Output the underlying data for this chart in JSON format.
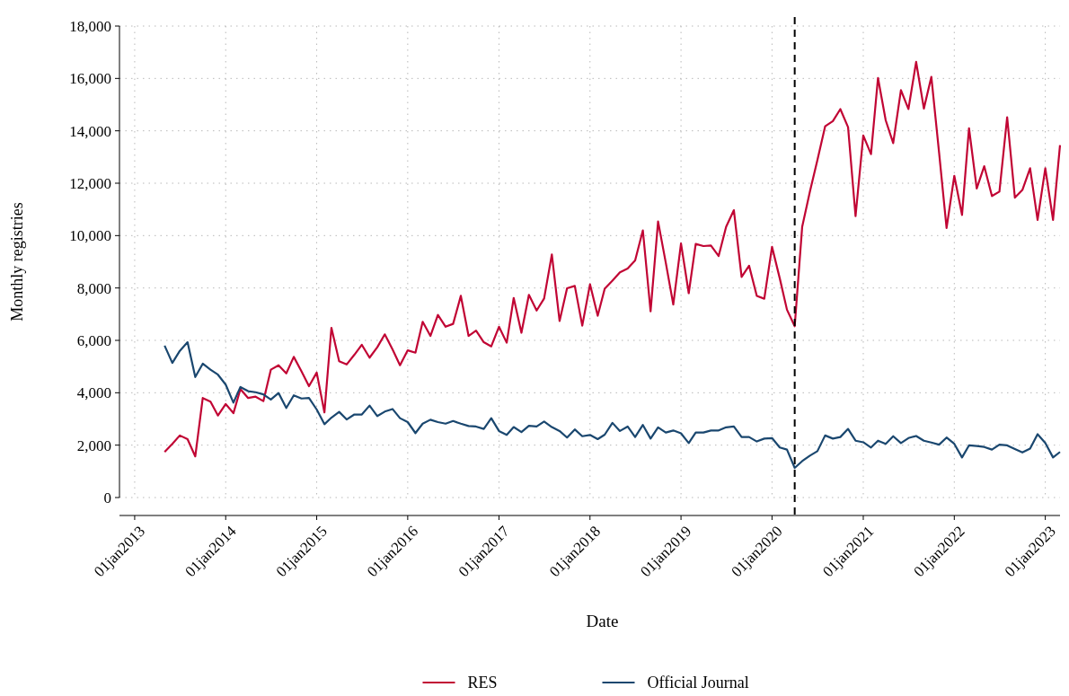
{
  "chart_data": {
    "type": "line",
    "xlabel": "Date",
    "ylabel": "Monthly registries",
    "x": [
      "2013-05",
      "2013-06",
      "2013-07",
      "2013-08",
      "2013-09",
      "2013-10",
      "2013-11",
      "2013-12",
      "2014-01",
      "2014-02",
      "2014-03",
      "2014-04",
      "2014-05",
      "2014-06",
      "2014-07",
      "2014-08",
      "2014-09",
      "2014-10",
      "2014-11",
      "2014-12",
      "2015-01",
      "2015-02",
      "2015-03",
      "2015-04",
      "2015-05",
      "2015-06",
      "2015-07",
      "2015-08",
      "2015-09",
      "2015-10",
      "2015-11",
      "2015-12",
      "2016-01",
      "2016-02",
      "2016-03",
      "2016-04",
      "2016-05",
      "2016-06",
      "2016-07",
      "2016-08",
      "2016-09",
      "2016-10",
      "2016-11",
      "2016-12",
      "2017-01",
      "2017-02",
      "2017-03",
      "2017-04",
      "2017-05",
      "2017-06",
      "2017-07",
      "2017-08",
      "2017-09",
      "2017-10",
      "2017-11",
      "2017-12",
      "2018-01",
      "2018-02",
      "2018-03",
      "2018-04",
      "2018-05",
      "2018-06",
      "2018-07",
      "2018-08",
      "2018-09",
      "2018-10",
      "2018-11",
      "2018-12",
      "2019-01",
      "2019-02",
      "2019-03",
      "2019-04",
      "2019-05",
      "2019-06",
      "2019-07",
      "2019-08",
      "2019-09",
      "2019-10",
      "2019-11",
      "2019-12",
      "2020-01",
      "2020-02",
      "2020-03",
      "2020-04",
      "2020-05",
      "2020-06",
      "2020-07",
      "2020-08",
      "2020-09",
      "2020-10",
      "2020-11",
      "2020-12",
      "2021-01",
      "2021-02",
      "2021-03",
      "2021-04",
      "2021-05",
      "2021-06",
      "2021-07",
      "2021-08",
      "2021-09",
      "2021-10",
      "2021-11",
      "2021-12",
      "2022-01",
      "2022-02",
      "2022-03",
      "2022-04",
      "2022-05",
      "2022-06",
      "2022-07",
      "2022-08",
      "2022-09",
      "2022-10",
      "2022-11",
      "2022-12",
      "2023-01",
      "2023-02",
      "2023-03"
    ],
    "series": [
      {
        "name": "RES",
        "color": "#c10534",
        "values": [
          1740,
          2050,
          2370,
          2230,
          1570,
          3800,
          3660,
          3130,
          3570,
          3220,
          4140,
          3800,
          3850,
          3680,
          4880,
          5050,
          4740,
          5370,
          4820,
          4250,
          4770,
          3250,
          6480,
          5200,
          5080,
          5450,
          5830,
          5340,
          5740,
          6230,
          5660,
          5050,
          5620,
          5530,
          6710,
          6170,
          6970,
          6520,
          6630,
          7700,
          6170,
          6370,
          5930,
          5770,
          6520,
          5910,
          7620,
          6290,
          7740,
          7140,
          7600,
          9280,
          6740,
          7990,
          8080,
          6560,
          8140,
          6940,
          7970,
          8280,
          8600,
          8740,
          9050,
          10200,
          7110,
          10540,
          8960,
          7370,
          9700,
          7800,
          9680,
          9600,
          9620,
          9220,
          10340,
          10970,
          8420,
          8850,
          7700,
          7590,
          9570,
          8370,
          7170,
          6540,
          10340,
          11680,
          12880,
          14170,
          14370,
          14830,
          14140,
          10740,
          13820,
          13110,
          16020,
          14400,
          13530,
          15550,
          14830,
          16630,
          14850,
          16060,
          13170,
          10290,
          12280,
          10790,
          14100,
          11800,
          12650,
          11510,
          11680,
          14520,
          11450,
          11740,
          12570,
          10600,
          12570,
          10600,
          13450
        ]
      },
      {
        "name": "Official Journal",
        "color": "#1a476f",
        "values": [
          5800,
          5140,
          5600,
          5930,
          4600,
          5110,
          4880,
          4690,
          4310,
          3620,
          4220,
          4060,
          4020,
          3940,
          3740,
          3990,
          3420,
          3900,
          3780,
          3800,
          3360,
          2800,
          3050,
          3270,
          2980,
          3170,
          3170,
          3510,
          3110,
          3280,
          3380,
          3030,
          2880,
          2460,
          2820,
          2970,
          2880,
          2820,
          2920,
          2820,
          2730,
          2710,
          2620,
          3030,
          2540,
          2390,
          2690,
          2500,
          2740,
          2710,
          2900,
          2690,
          2540,
          2290,
          2600,
          2340,
          2390,
          2230,
          2400,
          2850,
          2540,
          2710,
          2310,
          2770,
          2250,
          2680,
          2480,
          2560,
          2450,
          2080,
          2480,
          2480,
          2560,
          2560,
          2680,
          2710,
          2310,
          2310,
          2140,
          2250,
          2270,
          1910,
          1830,
          1130,
          1390,
          1600,
          1770,
          2370,
          2250,
          2310,
          2620,
          2170,
          2110,
          1910,
          2170,
          2050,
          2340,
          2080,
          2270,
          2350,
          2170,
          2100,
          2020,
          2290,
          2050,
          1530,
          1990,
          1970,
          1930,
          1830,
          2020,
          1990,
          1850,
          1720,
          1870,
          2420,
          2080,
          1530,
          1740
        ]
      }
    ],
    "xlim": [
      "2012-11",
      "2023-03"
    ],
    "xticks": [
      {
        "value": "2013-01",
        "label": "01jan2013"
      },
      {
        "value": "2014-01",
        "label": "01jan2014"
      },
      {
        "value": "2015-01",
        "label": "01jan2015"
      },
      {
        "value": "2016-01",
        "label": "01jan2016"
      },
      {
        "value": "2017-01",
        "label": "01jan2017"
      },
      {
        "value": "2018-01",
        "label": "01jan2018"
      },
      {
        "value": "2019-01",
        "label": "01jan2019"
      },
      {
        "value": "2020-01",
        "label": "01jan2020"
      },
      {
        "value": "2021-01",
        "label": "01jan2021"
      },
      {
        "value": "2022-01",
        "label": "01jan2022"
      },
      {
        "value": "2023-01",
        "label": "01jan2023"
      }
    ],
    "ylim": [
      0,
      18000
    ],
    "yticks": [
      0,
      {
        "value": 2000,
        "label": "2,000"
      },
      {
        "value": 4000,
        "label": "4,000"
      },
      {
        "value": 6000,
        "label": "6,000"
      },
      {
        "value": 8000,
        "label": "8,000"
      },
      {
        "value": 10000,
        "label": "10,000"
      },
      {
        "value": 12000,
        "label": "12,000"
      },
      {
        "value": 14000,
        "label": "14,000"
      },
      {
        "value": 16000,
        "label": "16,000"
      },
      {
        "value": 18000,
        "label": "18,000"
      }
    ],
    "grid": true,
    "legend": "bottom",
    "marker": "none",
    "line_style": "solid",
    "ref_lines": [
      {
        "axis": "x",
        "value": "2020-04",
        "color": "#000000",
        "line_style": "dashed"
      }
    ]
  }
}
